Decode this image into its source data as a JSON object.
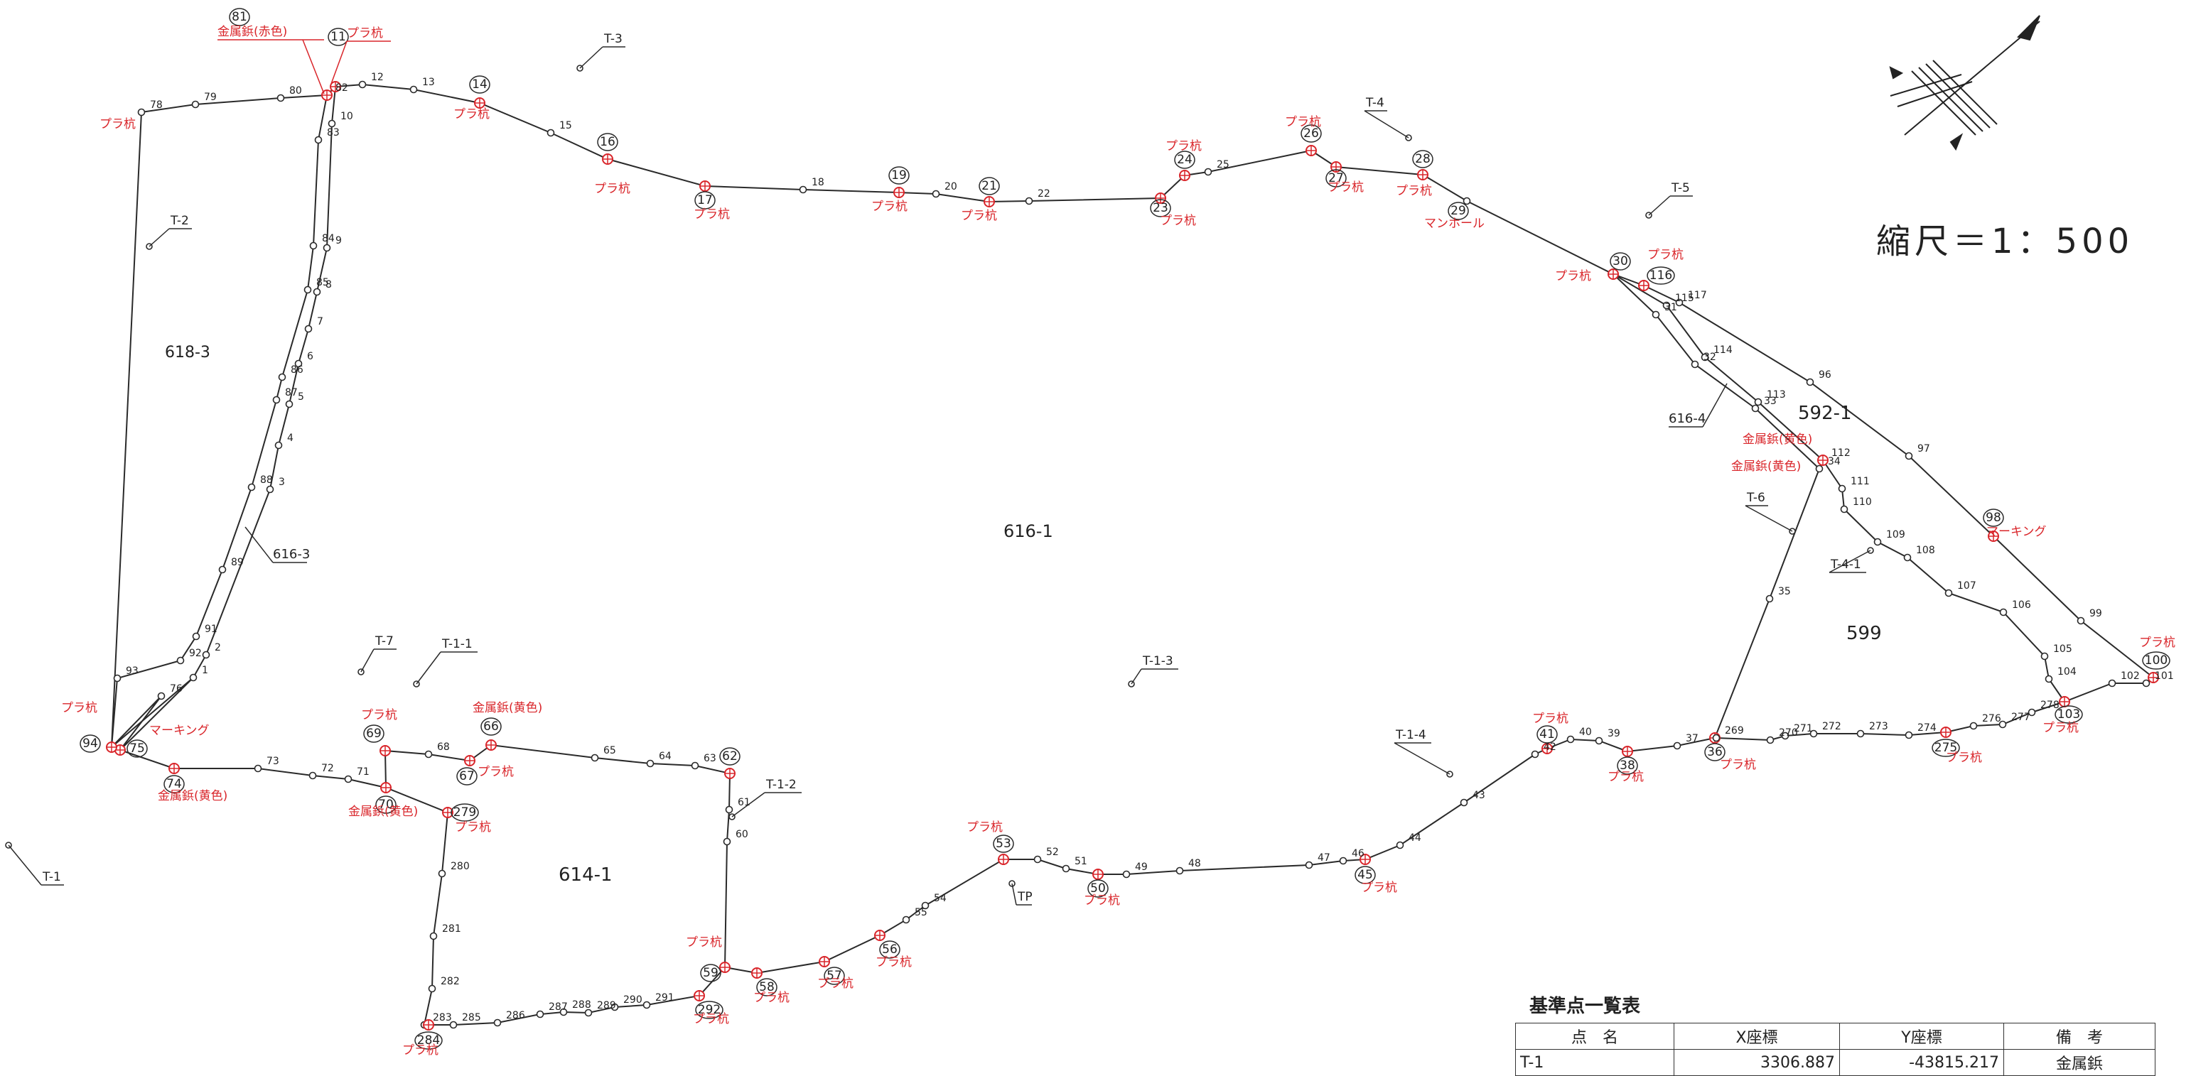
{
  "scale_label": "縮尺＝1：500",
  "table": {
    "title": "基準点一覧表",
    "headers": [
      "点　名",
      "X座標",
      "Y座標",
      "備　考"
    ],
    "rows": [
      [
        "T-1",
        "3306.887",
        "-43815.217",
        "金属鋲"
      ]
    ]
  },
  "parcels": [
    "616-1",
    "618-3",
    "614-1",
    "592-1",
    "599",
    "616-3",
    "616-4"
  ],
  "ref_points": [
    "T-1",
    "T-2",
    "T-3",
    "T-4",
    "T-5",
    "T-6",
    "T-7",
    "T-1-1",
    "T-1-2",
    "T-1-3",
    "T-1-4",
    "T-4-1",
    "TP"
  ],
  "point_numbers": [
    "1",
    "2",
    "3",
    "4",
    "5",
    "6",
    "7",
    "8",
    "9",
    "10",
    "11",
    "12",
    "13",
    "14",
    "15",
    "16",
    "17",
    "18",
    "19",
    "20",
    "21",
    "22",
    "23",
    "24",
    "25",
    "26",
    "27",
    "28",
    "29",
    "30",
    "31",
    "32",
    "33",
    "34",
    "35",
    "36",
    "37",
    "38",
    "39",
    "40",
    "41",
    "42",
    "43",
    "44",
    "45",
    "46",
    "47",
    "48",
    "49",
    "50",
    "51",
    "52",
    "53",
    "54",
    "55",
    "56",
    "57",
    "58",
    "59",
    "60",
    "61",
    "62",
    "63",
    "64",
    "65",
    "66",
    "67",
    "68",
    "69",
    "70",
    "71",
    "72",
    "73",
    "74",
    "75",
    "76",
    "78",
    "79",
    "80",
    "81",
    "82",
    "83",
    "84",
    "85",
    "86",
    "87",
    "88",
    "89",
    "91",
    "92",
    "93",
    "94",
    "96",
    "97",
    "98",
    "99",
    "100",
    "101",
    "102",
    "103",
    "104",
    "105",
    "106",
    "107",
    "108",
    "109",
    "110",
    "111",
    "112",
    "113",
    "114",
    "115",
    "116",
    "117",
    "269",
    "270",
    "271",
    "272",
    "273",
    "274",
    "275",
    "276",
    "277",
    "278",
    "279",
    "280",
    "281",
    "282",
    "283",
    "284",
    "285",
    "286",
    "287",
    "288",
    "289",
    "290",
    "291",
    "292"
  ],
  "marker_notes": [
    "プラ杭",
    "金属鋲(赤色)",
    "金属鋲(黄色)",
    "マーキング",
    "マンホール"
  ],
  "colors": {
    "line": "#2a2a2a",
    "marker": "#d9252a",
    "text": "#222222"
  }
}
